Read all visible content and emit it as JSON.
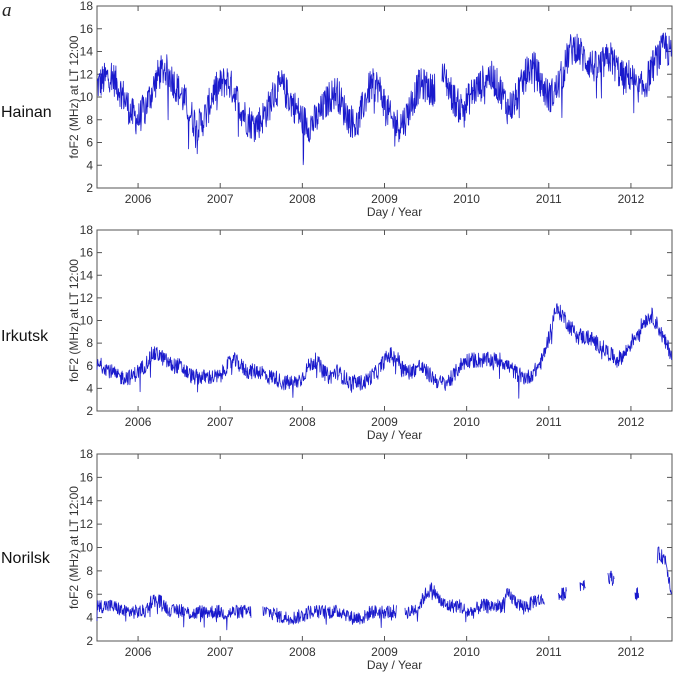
{
  "figure": {
    "panel_letter": "a",
    "series_color": "#1a1acc"
  },
  "chart_data": [
    {
      "type": "line",
      "station": "Hainan",
      "xlabel": "Day / Year",
      "ylabel": "foF2 (MHz) at LT 12:00",
      "xlim": [
        2005.5,
        2012.5
      ],
      "ylim": [
        2,
        18
      ],
      "yticks": [
        2,
        4,
        6,
        8,
        10,
        12,
        14,
        16,
        18
      ],
      "xtick_labels": [
        "2006",
        "2007",
        "2008",
        "2009",
        "2010",
        "2011",
        "2012"
      ],
      "grid": false,
      "series": [
        {
          "x": [
            2005.5,
            2005.58,
            2005.67,
            2005.75,
            2005.83,
            2005.92,
            2006.0,
            2006.08,
            2006.17,
            2006.25,
            2006.33,
            2006.42,
            2006.5,
            2006.58,
            2006.67,
            2006.75,
            2006.83,
            2006.92,
            2007.0,
            2007.08,
            2007.17,
            2007.25,
            2007.33,
            2007.42,
            2007.5,
            2007.58,
            2007.67,
            2007.75,
            2007.83,
            2007.92,
            2008.0,
            2008.08,
            2008.17,
            2008.25,
            2008.33,
            2008.42,
            2008.5,
            2008.58,
            2008.67,
            2008.75,
            2008.83,
            2008.92,
            2009.0,
            2009.08,
            2009.17,
            2009.25,
            2009.33,
            2009.42,
            2009.5,
            2009.58,
            2009.67,
            2009.75,
            2009.83,
            2009.92,
            2010.0,
            2010.08,
            2010.17,
            2010.25,
            2010.33,
            2010.42,
            2010.5,
            2010.58,
            2010.67,
            2010.75,
            2010.83,
            2010.92,
            2011.0,
            2011.08,
            2011.17,
            2011.25,
            2011.33,
            2011.42,
            2011.5,
            2011.58,
            2011.67,
            2011.75,
            2011.83,
            2011.92,
            2012.0,
            2012.08,
            2012.17,
            2012.25,
            2012.33,
            2012.42,
            2012.5
          ],
          "y": [
            11.0,
            11.5,
            12.0,
            11.0,
            10.0,
            8.5,
            8.0,
            9.0,
            10.5,
            12.0,
            12.5,
            11.5,
            10.5,
            9.5,
            8.0,
            7.5,
            8.5,
            10.5,
            11.0,
            11.5,
            10.5,
            9.0,
            8.0,
            7.5,
            8.0,
            9.0,
            10.5,
            11.0,
            10.0,
            9.0,
            8.0,
            7.5,
            8.0,
            9.0,
            10.0,
            10.5,
            9.0,
            8.0,
            7.5,
            9.5,
            11.0,
            11.0,
            9.5,
            8.0,
            7.5,
            8.0,
            9.5,
            11.0,
            11.0,
            10.5,
            12.0,
            11.5,
            10.0,
            9.0,
            9.5,
            10.5,
            11.0,
            12.0,
            11.5,
            10.5,
            9.0,
            9.5,
            11.0,
            12.5,
            12.5,
            11.0,
            10.0,
            10.5,
            12.0,
            14.0,
            14.5,
            13.5,
            13.0,
            12.5,
            13.0,
            13.5,
            12.5,
            11.5,
            12.0,
            10.5,
            11.0,
            12.5,
            13.5,
            14.5,
            13.5
          ],
          "spread": 1.5,
          "gaps": [
            [
              2009.62,
              2009.7
            ]
          ]
        }
      ]
    },
    {
      "type": "line",
      "station": "Irkutsk",
      "xlabel": "Day / Year",
      "ylabel": "foF2 (MHz) at LT 12:00",
      "xlim": [
        2005.5,
        2012.5
      ],
      "ylim": [
        2,
        18
      ],
      "yticks": [
        2,
        4,
        6,
        8,
        10,
        12,
        14,
        16,
        18
      ],
      "xtick_labels": [
        "2006",
        "2007",
        "2008",
        "2009",
        "2010",
        "2011",
        "2012"
      ],
      "grid": false,
      "series": [
        {
          "x": [
            2005.5,
            2005.58,
            2005.67,
            2005.75,
            2005.83,
            2005.92,
            2006.0,
            2006.08,
            2006.17,
            2006.25,
            2006.33,
            2006.42,
            2006.5,
            2006.58,
            2006.67,
            2006.75,
            2006.83,
            2006.92,
            2007.0,
            2007.08,
            2007.17,
            2007.25,
            2007.33,
            2007.42,
            2007.5,
            2007.58,
            2007.67,
            2007.75,
            2007.83,
            2007.92,
            2008.0,
            2008.08,
            2008.17,
            2008.25,
            2008.33,
            2008.42,
            2008.5,
            2008.58,
            2008.67,
            2008.75,
            2008.83,
            2008.92,
            2009.0,
            2009.08,
            2009.17,
            2009.25,
            2009.33,
            2009.42,
            2009.5,
            2009.58,
            2009.67,
            2009.75,
            2009.83,
            2009.92,
            2010.0,
            2010.08,
            2010.17,
            2010.25,
            2010.33,
            2010.42,
            2010.5,
            2010.58,
            2010.67,
            2010.75,
            2010.83,
            2010.92,
            2011.0,
            2011.08,
            2011.17,
            2011.25,
            2011.33,
            2011.42,
            2011.5,
            2011.58,
            2011.67,
            2011.75,
            2011.83,
            2011.92,
            2012.0,
            2012.08,
            2012.17,
            2012.25,
            2012.33,
            2012.42,
            2012.5
          ],
          "y": [
            6.0,
            6.0,
            5.5,
            5.0,
            5.0,
            5.0,
            5.5,
            6.0,
            7.0,
            7.0,
            6.5,
            6.0,
            6.0,
            5.5,
            5.0,
            5.0,
            5.0,
            5.0,
            5.0,
            6.0,
            6.5,
            6.0,
            5.5,
            5.5,
            5.5,
            5.0,
            5.0,
            4.5,
            4.5,
            4.5,
            5.0,
            6.0,
            6.5,
            5.5,
            5.0,
            5.5,
            5.0,
            4.5,
            4.5,
            4.5,
            5.0,
            5.5,
            6.5,
            7.0,
            6.5,
            5.5,
            5.5,
            6.0,
            5.5,
            5.0,
            4.5,
            4.5,
            5.0,
            6.0,
            6.5,
            6.5,
            6.5,
            6.5,
            6.5,
            6.5,
            6.0,
            5.5,
            5.0,
            5.0,
            5.5,
            6.5,
            8.5,
            11.0,
            10.5,
            9.5,
            9.0,
            8.5,
            8.5,
            8.0,
            7.5,
            7.0,
            6.5,
            7.0,
            8.0,
            9.0,
            10.0,
            10.5,
            9.5,
            8.0,
            7.0
          ],
          "spread": 0.7,
          "gaps": []
        }
      ]
    },
    {
      "type": "line",
      "station": "Norilsk",
      "xlabel": "Day / Year",
      "ylabel": "foF2 (MHz) at LT 12:00",
      "xlim": [
        2005.5,
        2012.5
      ],
      "ylim": [
        2,
        18
      ],
      "yticks": [
        2,
        4,
        6,
        8,
        10,
        12,
        14,
        16,
        18
      ],
      "xtick_labels": [
        "2006",
        "2007",
        "2008",
        "2009",
        "2010",
        "2011",
        "2012"
      ],
      "grid": false,
      "series": [
        {
          "x": [
            2005.5,
            2005.58,
            2005.67,
            2005.75,
            2005.83,
            2005.92,
            2006.0,
            2006.08,
            2006.17,
            2006.25,
            2006.33,
            2006.42,
            2006.5,
            2006.58,
            2006.67,
            2006.75,
            2006.83,
            2006.92,
            2007.0,
            2007.08,
            2007.17,
            2007.25,
            2007.33,
            2007.42,
            2007.5,
            2007.58,
            2007.67,
            2007.75,
            2007.83,
            2007.92,
            2008.0,
            2008.08,
            2008.17,
            2008.25,
            2008.33,
            2008.42,
            2008.5,
            2008.58,
            2008.67,
            2008.75,
            2008.83,
            2008.92,
            2009.0,
            2009.08,
            2009.17,
            2009.25,
            2009.33,
            2009.42,
            2009.5,
            2009.58,
            2009.67,
            2009.75,
            2009.83,
            2009.92,
            2010.0,
            2010.08,
            2010.17,
            2010.25,
            2010.33,
            2010.42,
            2010.5,
            2010.58,
            2010.67,
            2010.75,
            2010.83,
            2010.92,
            2011.0,
            2011.08,
            2011.17,
            2011.25,
            2011.33,
            2011.42,
            2011.5,
            2011.58,
            2011.67,
            2011.75,
            2011.83,
            2011.92,
            2012.0,
            2012.08,
            2012.17,
            2012.25,
            2012.33,
            2012.42,
            2012.5
          ],
          "y": [
            5.0,
            5.0,
            5.0,
            4.8,
            4.5,
            4.5,
            4.5,
            4.5,
            5.5,
            5.5,
            5.0,
            4.5,
            4.8,
            4.5,
            4.3,
            4.5,
            4.5,
            4.5,
            4.5,
            4.3,
            4.5,
            4.5,
            4.5,
            4.5,
            4.5,
            4.5,
            4.3,
            4.0,
            4.0,
            4.0,
            4.2,
            4.5,
            4.5,
            4.5,
            4.5,
            4.5,
            4.5,
            4.0,
            4.0,
            4.0,
            4.5,
            4.5,
            4.5,
            4.5,
            4.5,
            4.5,
            4.5,
            5.0,
            6.0,
            6.5,
            5.5,
            5.0,
            5.0,
            5.0,
            4.5,
            4.5,
            5.0,
            5.0,
            5.0,
            5.0,
            6.0,
            5.5,
            5.0,
            5.0,
            5.5,
            5.5,
            6.0,
            5.5,
            6.0,
            6.5,
            6.5,
            7.0,
            6.5,
            7.0,
            7.5,
            7.5,
            7.0,
            6.5,
            6.5,
            6.0,
            6.0,
            7.0,
            9.5,
            9.0,
            6.0
          ],
          "spread": 0.6,
          "gaps": [
            [
              2007.38,
              2007.52
            ],
            [
              2009.15,
              2009.25
            ],
            [
              2010.95,
              2011.12
            ],
            [
              2011.22,
              2011.38
            ],
            [
              2011.45,
              2011.72
            ],
            [
              2011.8,
              2012.05
            ],
            [
              2012.1,
              2012.32
            ]
          ]
        }
      ]
    }
  ]
}
